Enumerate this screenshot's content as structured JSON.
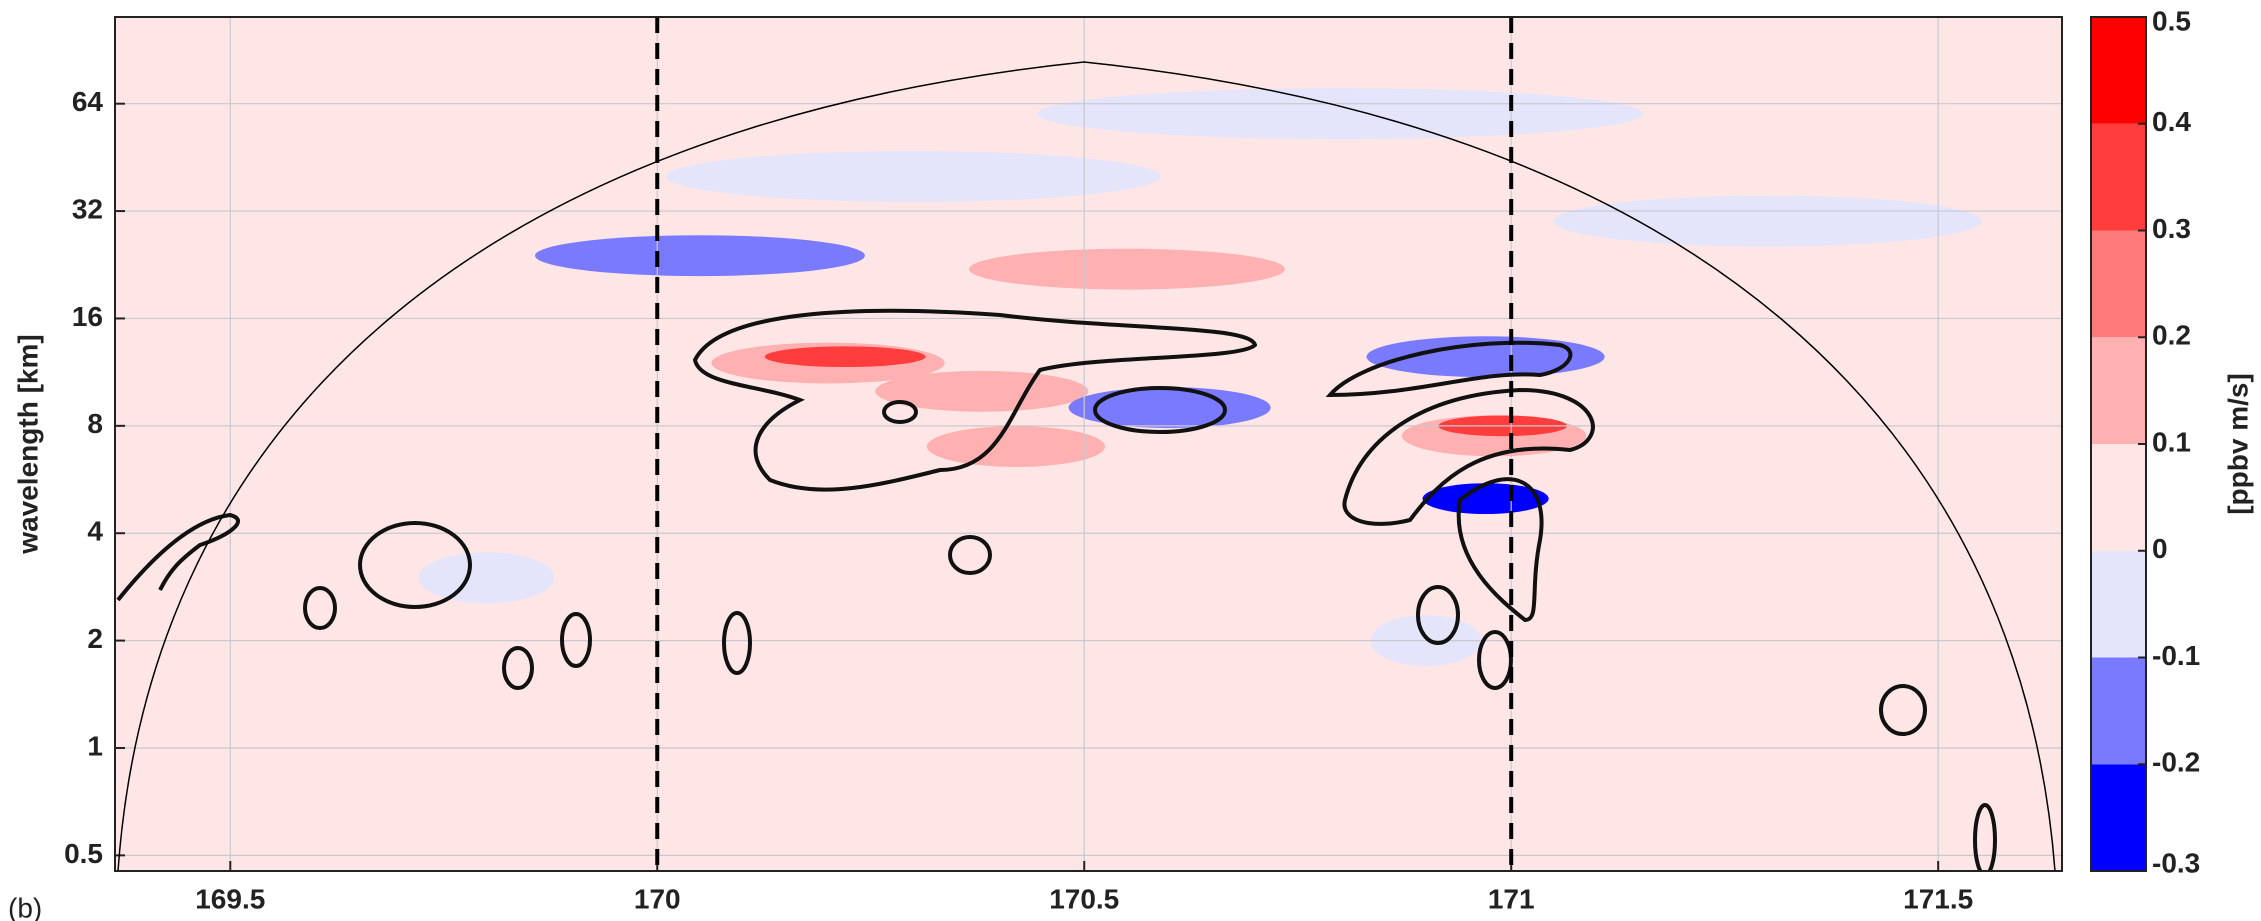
{
  "chart_data": {
    "type": "contour",
    "ylabel": "wavelength [km]",
    "panel_label": "(b)",
    "xlim": [
      169.365,
      171.645
    ],
    "xticks": [
      169.5,
      170,
      170.5,
      171,
      171.5
    ],
    "ylim": [
      0.452,
      112
    ],
    "yticks": [
      0.5,
      1,
      2,
      4,
      8,
      16,
      32,
      64
    ],
    "log_y": true,
    "grid": true,
    "vlines": [
      170,
      171
    ],
    "x": [
      170.05,
      170.55,
      170.2,
      170.22,
      170.38,
      170.42,
      170.6,
      170.97,
      170.98,
      170.99,
      170.97,
      170.3,
      170.8,
      171.3,
      169.8,
      170.9
    ],
    "y": [
      24,
      22,
      12,
      12.5,
      10,
      7,
      9,
      12.5,
      7.5,
      8,
      5,
      40,
      60,
      30,
      3,
      2
    ],
    "values": [
      -0.15,
      0.15,
      0.15,
      0.35,
      0.15,
      0.15,
      -0.15,
      -0.15,
      0.15,
      0.35,
      -0.25,
      -0.05,
      -0.05,
      -0.05,
      -0.05,
      -0.05
    ],
    "colorbar": {
      "label": "[ppbv m/s]",
      "levels": [
        -0.3,
        -0.2,
        -0.1,
        0,
        0.1,
        0.2,
        0.3,
        0.4,
        0.5
      ],
      "colors": [
        "#0000ff",
        "#7a7aff",
        "#e4e4fb",
        "#ffe6e6",
        "#ffb0b0",
        "#ff7b7b",
        "#ff3d3d",
        "#ff0000"
      ],
      "ticks": [
        -0.3,
        -0.2,
        -0.1,
        0,
        0.1,
        0.2,
        0.3,
        0.4,
        0.5
      ]
    }
  }
}
